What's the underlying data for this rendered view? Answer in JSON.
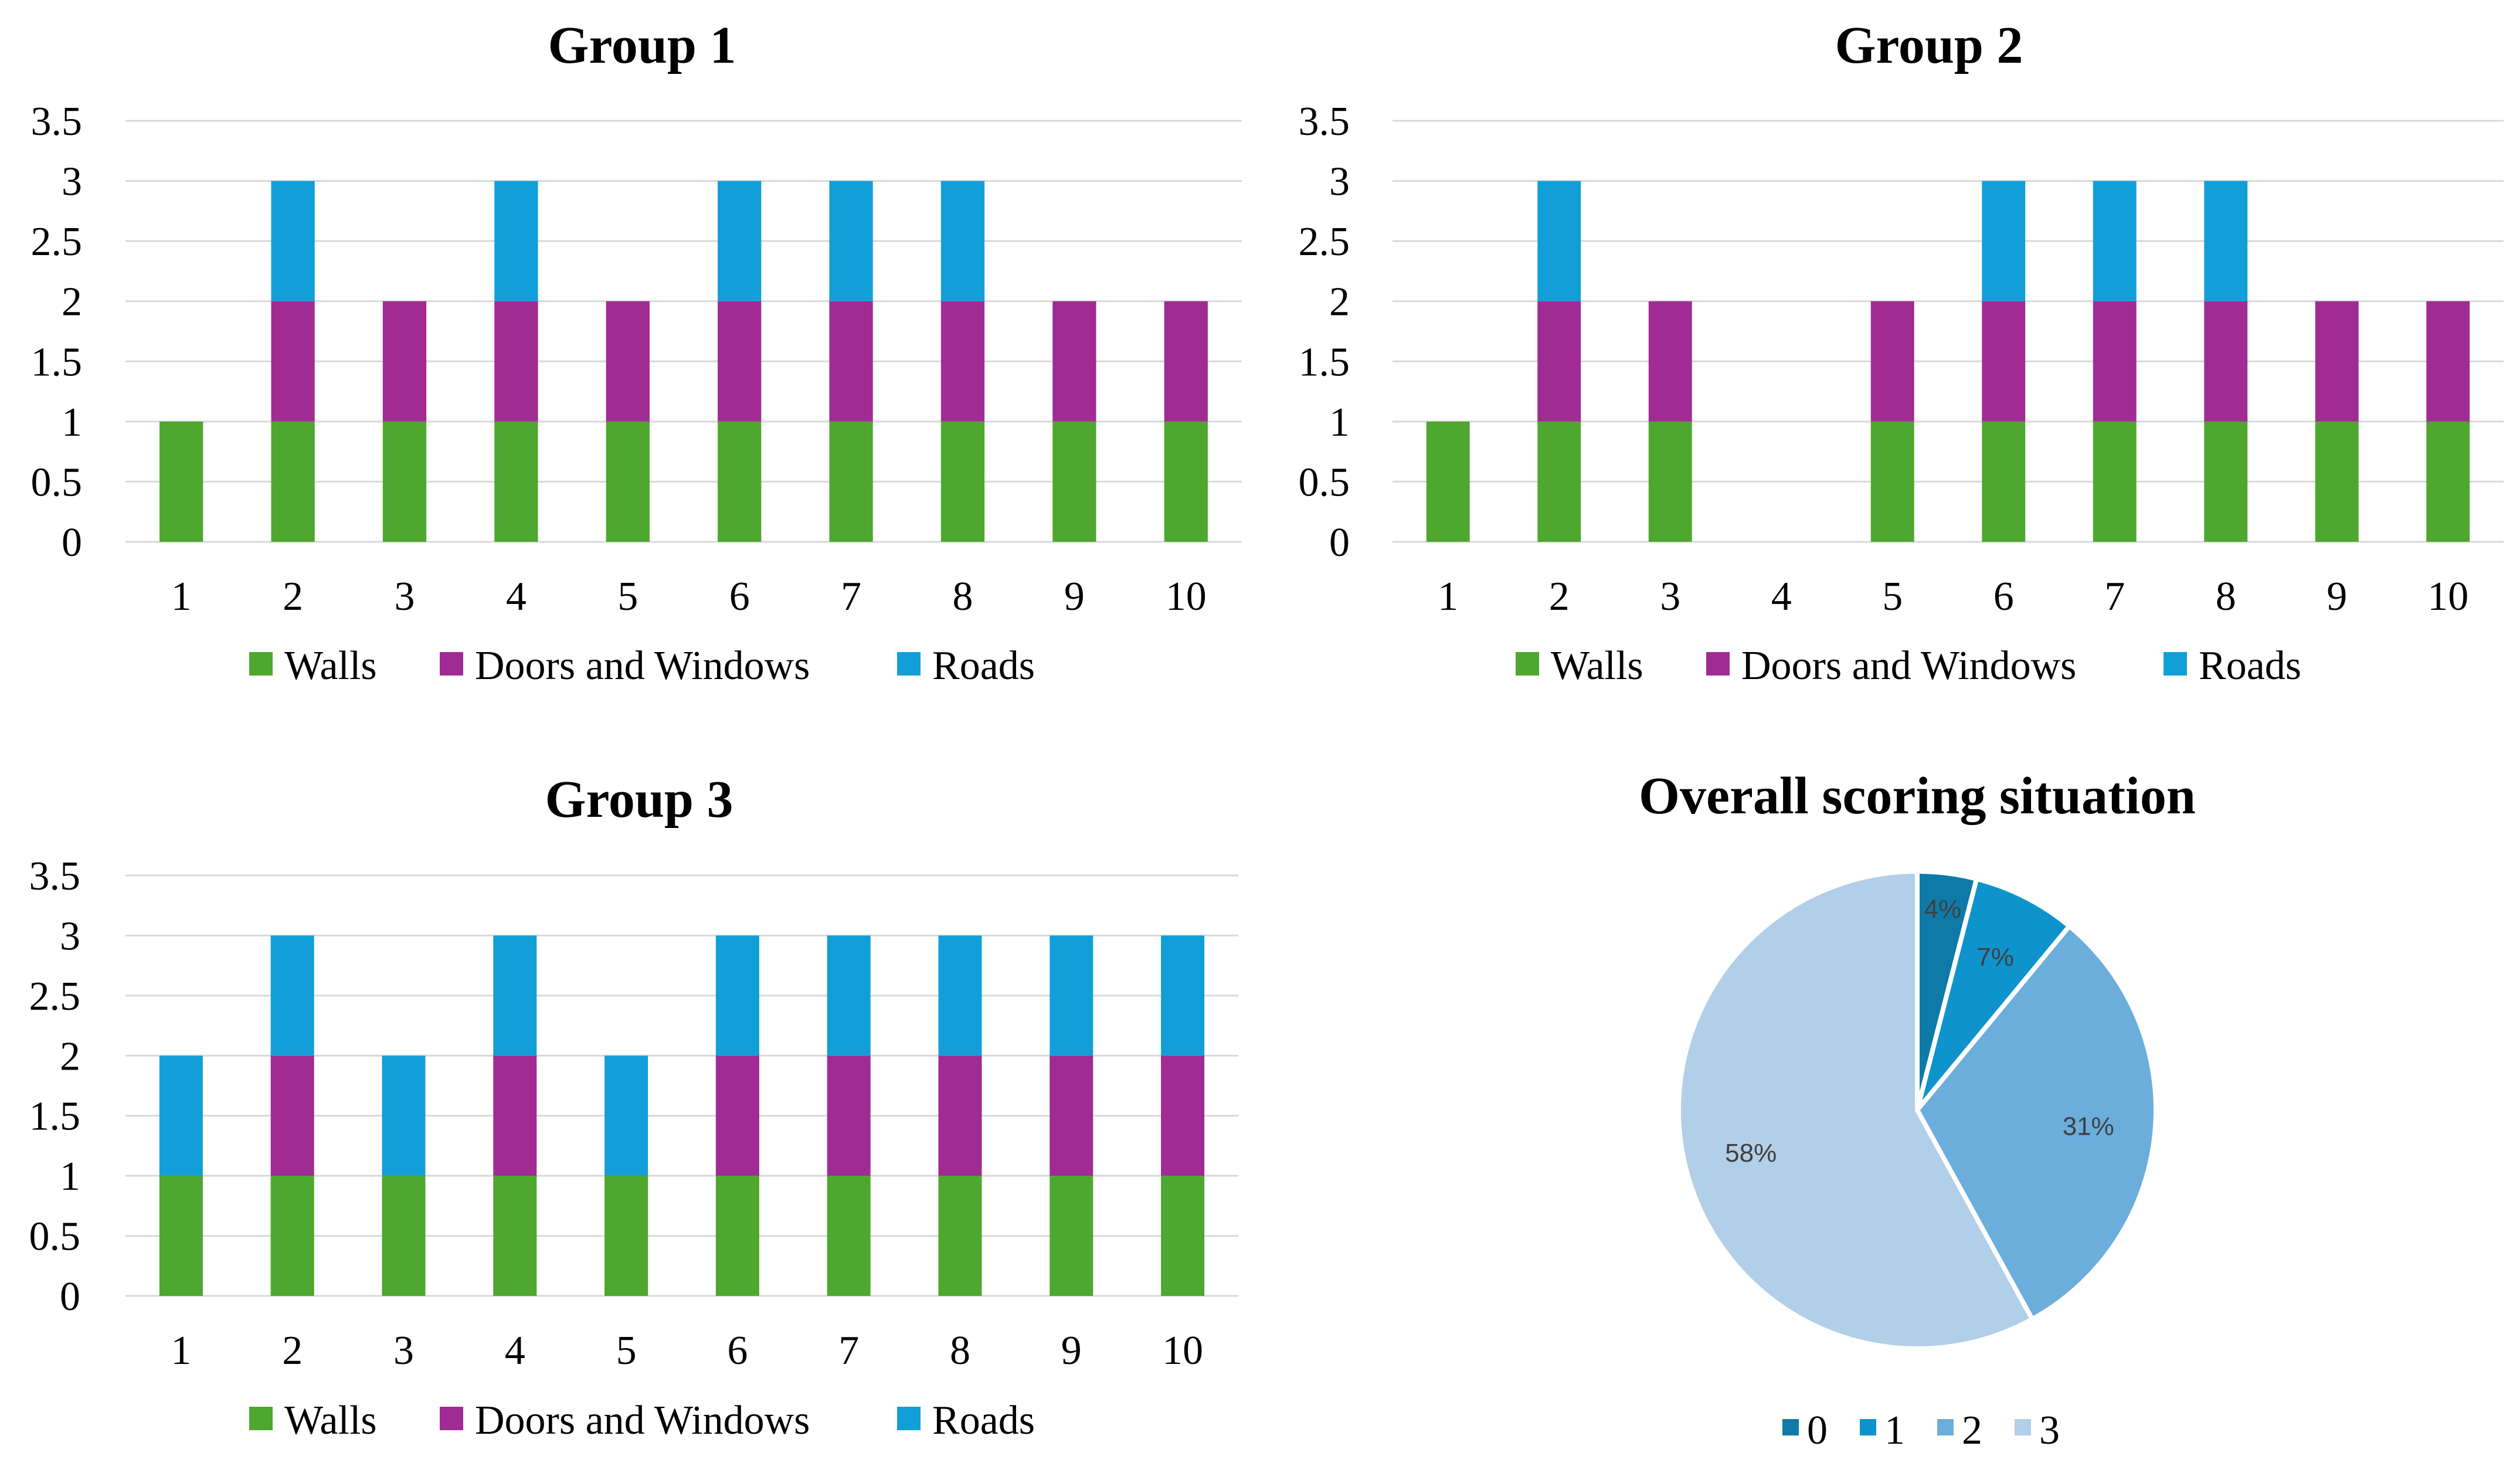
{
  "colors": {
    "walls": "#4ea72e",
    "doors": "#a02b93",
    "roads": "#129fd8",
    "pie": [
      "#0e7aa8",
      "#0f93cc",
      "#6baedc",
      "#b1cfe8"
    ]
  },
  "chart_data": [
    {
      "type": "bar",
      "stacked": true,
      "title": "Group 1",
      "categories": [
        "1",
        "2",
        "3",
        "4",
        "5",
        "6",
        "7",
        "8",
        "9",
        "10"
      ],
      "yticks": [
        "0",
        "0.5",
        "1",
        "1.5",
        "2",
        "2.5",
        "3",
        "3.5"
      ],
      "ylim": [
        0,
        3.5
      ],
      "grid": true,
      "legend_position": "bottom",
      "series": [
        {
          "name": "Walls",
          "values": [
            1,
            1,
            1,
            1,
            1,
            1,
            1,
            1,
            1,
            1
          ]
        },
        {
          "name": "Doors and Windows",
          "values": [
            0,
            1,
            1,
            1,
            1,
            1,
            1,
            1,
            1,
            1
          ]
        },
        {
          "name": "Roads",
          "values": [
            0,
            1,
            0,
            1,
            0,
            1,
            1,
            1,
            0,
            0
          ]
        }
      ]
    },
    {
      "type": "bar",
      "stacked": true,
      "title": "Group 2",
      "categories": [
        "1",
        "2",
        "3",
        "4",
        "5",
        "6",
        "7",
        "8",
        "9",
        "10"
      ],
      "yticks": [
        "0",
        "0.5",
        "1",
        "1.5",
        "2",
        "2.5",
        "3",
        "3.5"
      ],
      "ylim": [
        0,
        3.5
      ],
      "grid": true,
      "legend_position": "bottom",
      "series": [
        {
          "name": "Walls",
          "values": [
            1,
            1,
            1,
            0,
            1,
            1,
            1,
            1,
            1,
            1
          ]
        },
        {
          "name": "Doors and Windows",
          "values": [
            0,
            1,
            1,
            0,
            1,
            1,
            1,
            1,
            1,
            1
          ]
        },
        {
          "name": "Roads",
          "values": [
            0,
            1,
            0,
            0,
            0,
            1,
            1,
            1,
            0,
            0
          ]
        }
      ]
    },
    {
      "type": "bar",
      "stacked": true,
      "title": "Group 3",
      "categories": [
        "1",
        "2",
        "3",
        "4",
        "5",
        "6",
        "7",
        "8",
        "9",
        "10"
      ],
      "yticks": [
        "0",
        "0.5",
        "1",
        "1.5",
        "2",
        "2.5",
        "3",
        "3.5"
      ],
      "ylim": [
        0,
        3.5
      ],
      "grid": true,
      "legend_position": "bottom",
      "series": [
        {
          "name": "Walls",
          "values": [
            1,
            1,
            1,
            1,
            1,
            1,
            1,
            1,
            1,
            1
          ]
        },
        {
          "name": "Doors and Windows",
          "values": [
            0,
            1,
            0,
            1,
            0,
            1,
            1,
            1,
            1,
            1
          ]
        },
        {
          "name": "Roads",
          "values": [
            1,
            1,
            1,
            1,
            1,
            1,
            1,
            1,
            1,
            1
          ]
        }
      ]
    },
    {
      "type": "pie",
      "title": "Overall scoring situation",
      "categories": [
        "0",
        "1",
        "2",
        "3"
      ],
      "values": [
        4,
        7,
        31,
        58
      ],
      "labels": [
        "4%",
        "7%",
        "31%",
        "58%"
      ],
      "legend_position": "bottom"
    }
  ]
}
